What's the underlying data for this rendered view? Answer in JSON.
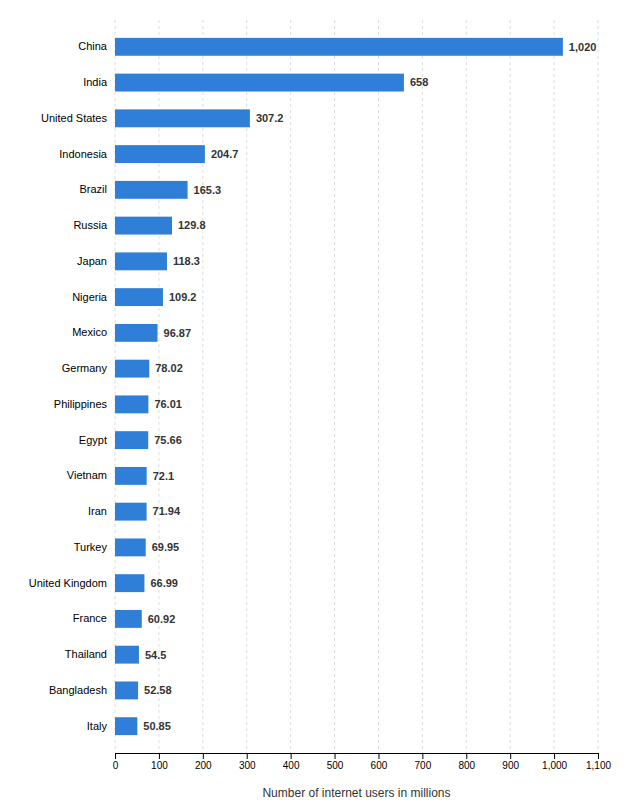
{
  "chart_data": {
    "type": "bar",
    "orientation": "horizontal",
    "xlabel": "Number of internet users in millions",
    "categories": [
      "Italy",
      "Bangladesh",
      "Thailand",
      "France",
      "United Kingdom",
      "Turkey",
      "Iran",
      "Vietnam",
      "Egypt",
      "Philippines",
      "Germany",
      "Mexico",
      "Nigeria",
      "Japan",
      "Russia",
      "Brazil",
      "Indonesia",
      "United States",
      "India",
      "China"
    ],
    "values": [
      50.85,
      52.58,
      54.5,
      60.92,
      66.99,
      69.95,
      71.94,
      72.1,
      75.66,
      76.01,
      78.02,
      96.87,
      109.2,
      118.3,
      129.8,
      165.3,
      204.7,
      307.2,
      658,
      1020
    ],
    "value_labels": [
      "50.85",
      "52.58",
      "54.5",
      "60.92",
      "66.99",
      "69.95",
      "71.94",
      "72.1",
      "75.66",
      "76.01",
      "78.02",
      "96.87",
      "109.2",
      "118.3",
      "129.8",
      "165.3",
      "204.7",
      "307.2",
      "658",
      "1,020"
    ],
    "data_labels": true,
    "color": "#2f7ed8",
    "xlim": [
      0,
      1100
    ],
    "xticks": [
      0,
      100,
      200,
      300,
      400,
      500,
      600,
      700,
      800,
      900,
      {
        "value": 1000,
        "label": "1,000"
      },
      {
        "value": 1100,
        "label": "1,100"
      }
    ],
    "grid": true
  }
}
